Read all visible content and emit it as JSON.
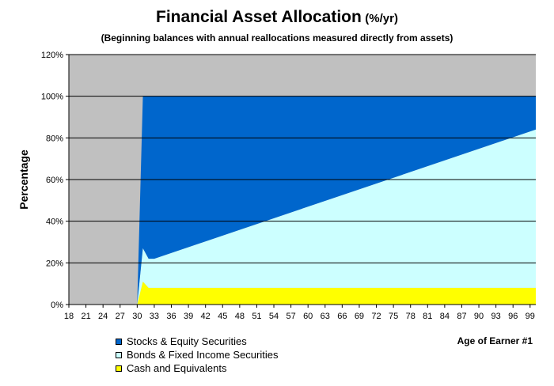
{
  "chart_data": {
    "type": "area",
    "stacked": true,
    "title": "Financial Asset Allocation",
    "title_unit": "(%/yr)",
    "subtitle": "(Beginning balances with annual reallocations measured directly from assets)",
    "ylabel": "Percentage",
    "xlabel": "Age of Earner #1",
    "ylim": [
      0,
      120
    ],
    "y_ticks": [
      0,
      20,
      40,
      60,
      80,
      100,
      120
    ],
    "y_tick_labels": [
      "0%",
      "20%",
      "40%",
      "60%",
      "80%",
      "100%",
      "120%"
    ],
    "x_tick_labels": [
      "18",
      "21",
      "24",
      "27",
      "30",
      "33",
      "36",
      "39",
      "42",
      "45",
      "48",
      "51",
      "54",
      "57",
      "60",
      "63",
      "66",
      "69",
      "72",
      "75",
      "78",
      "81",
      "84",
      "87",
      "90",
      "93",
      "96",
      "99"
    ],
    "x": [
      18,
      30,
      31,
      32,
      33,
      100
    ],
    "series": [
      {
        "name": "Cash and Equivalents",
        "color": "#ffff00",
        "values": [
          0,
          0,
          11,
          8,
          8,
          8
        ]
      },
      {
        "name": "Bonds & Fixed Income Securities",
        "color": "#ccffff",
        "values": [
          0,
          0,
          16,
          14,
          14,
          76
        ]
      },
      {
        "name": "Stocks & Equity Securities",
        "color": "#0066cc",
        "values": [
          0,
          0,
          73,
          78,
          78,
          16
        ]
      }
    ],
    "background_color": "#c0c0c0",
    "grid": true,
    "legend_position": "bottom-left"
  }
}
